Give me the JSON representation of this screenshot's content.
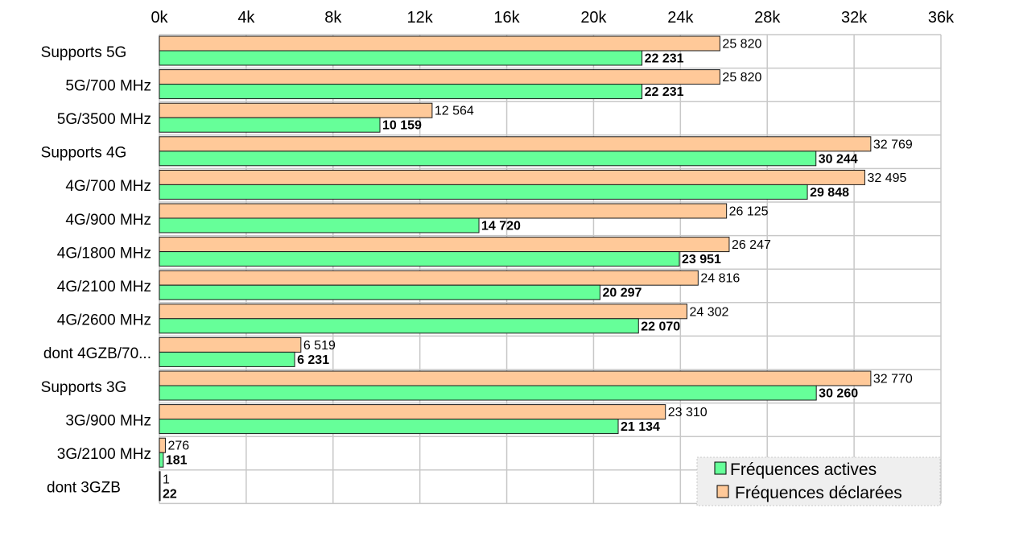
{
  "chart_data": {
    "type": "bar",
    "orientation": "horizontal",
    "categories": [
      "Supports 5G",
      "5G/700 MHz",
      "5G/3500 MHz",
      "Supports 4G",
      "4G/700 MHz",
      "4G/900 MHz",
      "4G/1800 MHz",
      "4G/2100 MHz",
      "4G/2600 MHz",
      "dont 4GZB/70...",
      "Supports 3G",
      "3G/900 MHz",
      "3G/2100 MHz",
      "dont 3GZB"
    ],
    "category_align": [
      "center",
      "right",
      "right",
      "center",
      "right",
      "right",
      "right",
      "right",
      "right",
      "right",
      "center",
      "right",
      "right",
      "center"
    ],
    "series": [
      {
        "name": "Fréquences déclarées",
        "color": "#ffc999",
        "label_weight": "normal",
        "values": [
          25820,
          25820,
          12564,
          32769,
          32495,
          26125,
          26247,
          24816,
          24302,
          6519,
          32770,
          23310,
          276,
          1
        ],
        "labels": [
          "25 820",
          "25 820",
          "12 564",
          "32 769",
          "32 495",
          "26 125",
          "26 247",
          "24 816",
          "24 302",
          "6 519",
          "32 770",
          "23 310",
          "276",
          "1"
        ]
      },
      {
        "name": "Fréquences actives",
        "color": "#66ff99",
        "label_weight": "bold",
        "values": [
          22231,
          22231,
          10159,
          30244,
          29848,
          14720,
          23951,
          20297,
          22070,
          6231,
          30260,
          21134,
          181,
          22
        ],
        "labels": [
          "22 231",
          "22 231",
          "10 159",
          "30 244",
          "29 848",
          "14 720",
          "23 951",
          "20 297",
          "22 070",
          "6 231",
          "30 260",
          "21 134",
          "181",
          "22"
        ]
      }
    ],
    "xlim": [
      0,
      36000
    ],
    "x_ticks": [
      0,
      4000,
      8000,
      12000,
      16000,
      20000,
      24000,
      28000,
      32000,
      36000
    ],
    "x_tick_labels": [
      "0k",
      "4k",
      "8k",
      "12k",
      "16k",
      "20k",
      "24k",
      "28k",
      "32k",
      "36k"
    ],
    "x_axis_position": "top",
    "grid": true,
    "legend": {
      "position": "bottom-right",
      "entries": [
        {
          "label": "Fréquences actives",
          "color": "#66ff99"
        },
        {
          "label": "Fréquences déclarées",
          "color": "#ffc999"
        }
      ]
    }
  }
}
